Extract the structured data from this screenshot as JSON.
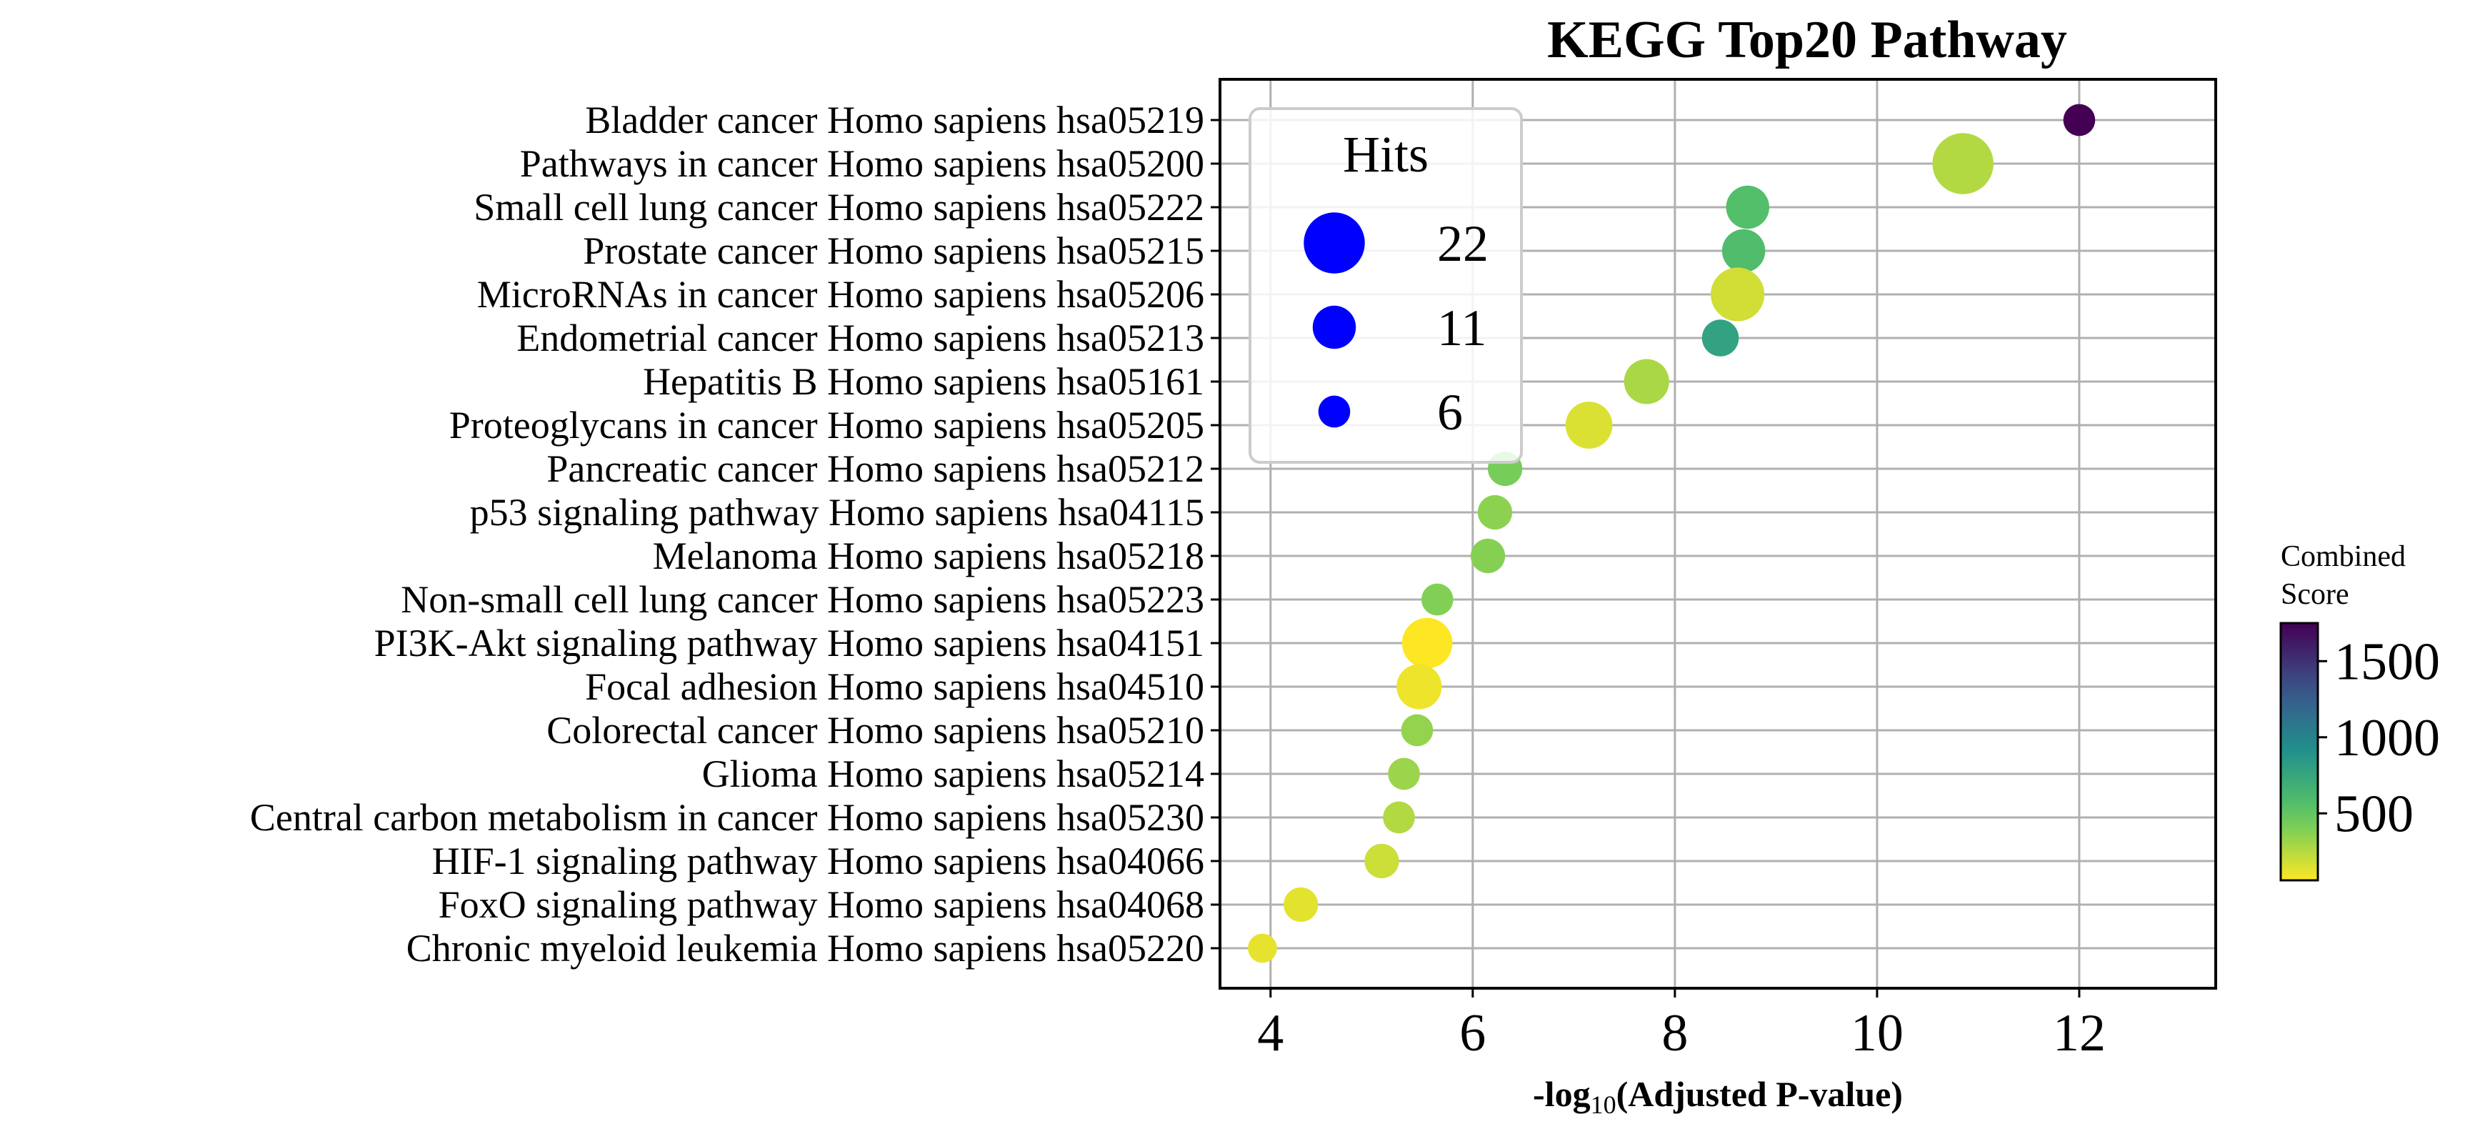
{
  "chart_data": {
    "type": "scatter",
    "title": "KEGG Top20 Pathway",
    "xlabel_prefix": "-log",
    "xlabel_sub": "10",
    "xlabel_suffix": "(Adjusted P-value)",
    "xlim": [
      3.5,
      13.35
    ],
    "xticks": [
      4,
      6,
      8,
      10,
      12
    ],
    "grid": true,
    "points": [
      {
        "label": "Bladder cancer Homo sapiens hsa05219",
        "x": 12.0,
        "hits": 6,
        "score": 1750
      },
      {
        "label": "Pathways in cancer Homo sapiens hsa05200",
        "x": 10.85,
        "hits": 22,
        "score": 260
      },
      {
        "label": "Small cell lung cancer Homo sapiens hsa05222",
        "x": 8.72,
        "hits": 11,
        "score": 560
      },
      {
        "label": "Prostate cancer Homo sapiens hsa05215",
        "x": 8.68,
        "hits": 11,
        "score": 580
      },
      {
        "label": "MicroRNAs in cancer Homo sapiens hsa05206",
        "x": 8.62,
        "hits": 17,
        "score": 180
      },
      {
        "label": "Endometrial cancer Homo sapiens hsa05213",
        "x": 8.45,
        "hits": 8,
        "score": 780
      },
      {
        "label": "Hepatitis B Homo sapiens hsa05161",
        "x": 7.72,
        "hits": 12,
        "score": 280
      },
      {
        "label": "Proteoglycans in cancer Homo sapiens hsa05205",
        "x": 7.15,
        "hits": 13,
        "score": 150
      },
      {
        "label": "Pancreatic cancer Homo sapiens hsa05212",
        "x": 6.32,
        "hits": 7,
        "score": 420
      },
      {
        "label": "p53 signaling pathway Homo sapiens hsa04115",
        "x": 6.22,
        "hits": 7,
        "score": 360
      },
      {
        "label": "Melanoma Homo sapiens hsa05218",
        "x": 6.15,
        "hits": 7,
        "score": 380
      },
      {
        "label": "Non-small cell lung cancer Homo sapiens hsa05223",
        "x": 5.65,
        "hits": 6,
        "score": 390
      },
      {
        "label": "PI3K-Akt signaling pathway Homo sapiens hsa04151",
        "x": 5.55,
        "hits": 15,
        "score": 60
      },
      {
        "label": "Focal adhesion Homo sapiens hsa04510",
        "x": 5.47,
        "hits": 12,
        "score": 100
      },
      {
        "label": "Colorectal cancer Homo sapiens hsa05210",
        "x": 5.45,
        "hits": 6,
        "score": 340
      },
      {
        "label": "Glioma Homo sapiens hsa05214",
        "x": 5.32,
        "hits": 6,
        "score": 320
      },
      {
        "label": "Central carbon metabolism in cancer Homo sapiens hsa05230",
        "x": 5.27,
        "hits": 6,
        "score": 260
      },
      {
        "label": "HIF-1 signaling pathway Homo sapiens hsa04066",
        "x": 5.1,
        "hits": 7,
        "score": 190
      },
      {
        "label": "FoxO signaling pathway Homo sapiens hsa04068",
        "x": 4.3,
        "hits": 7,
        "score": 130
      },
      {
        "label": "Chronic myeloid leukemia Homo sapiens hsa05220",
        "x": 3.92,
        "hits": 5,
        "score": 120
      }
    ],
    "size_legend": {
      "title": "Hits",
      "entries": [
        22,
        11,
        6
      ],
      "color": "#0000ff"
    },
    "colorbar": {
      "title_line1": "Combined",
      "title_line2": "Score",
      "range": [
        60,
        1750
      ],
      "ticks": [
        500,
        1000,
        1500
      ],
      "colormap": "viridis_r"
    }
  }
}
